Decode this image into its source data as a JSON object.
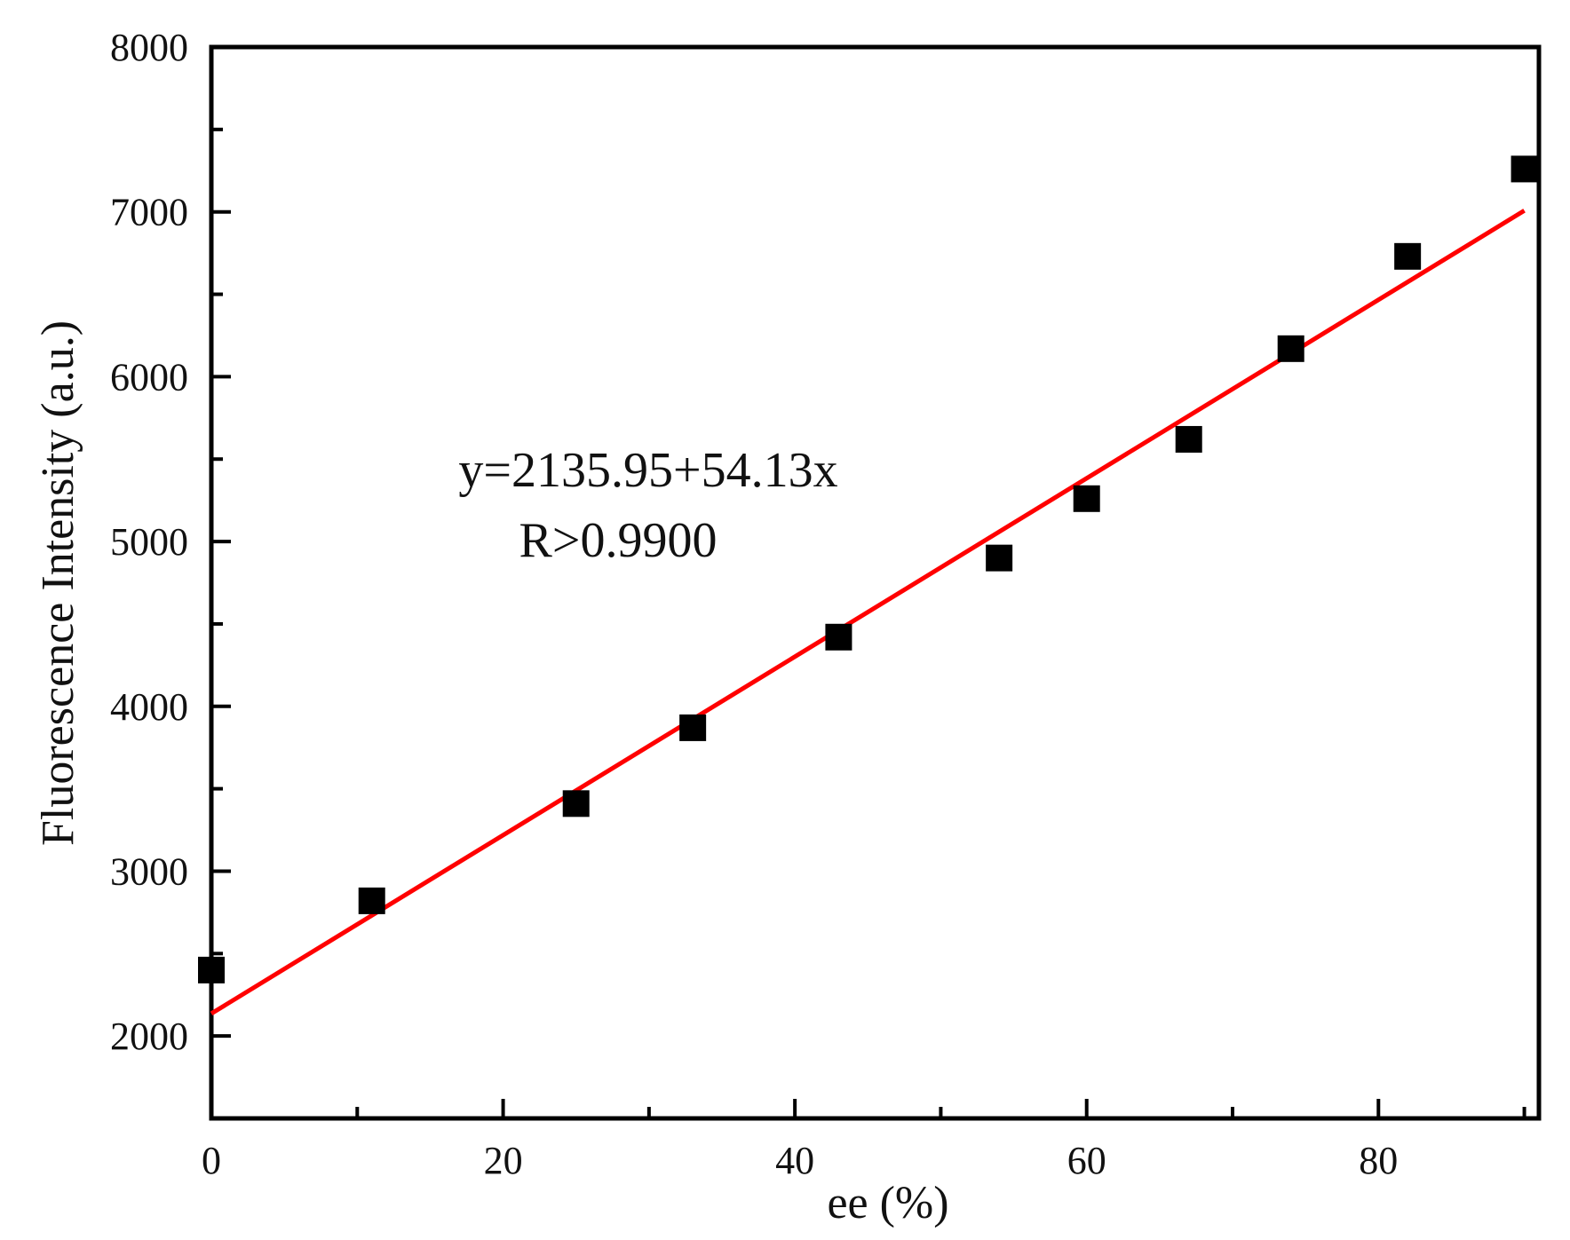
{
  "chart_data": {
    "type": "scatter",
    "xlabel": "ee (%)",
    "ylabel": "Fluorescence Intensity (a.u.)",
    "xlim": [
      0,
      91
    ],
    "ylim": [
      1500,
      8000
    ],
    "x_ticks": [
      0,
      20,
      40,
      60,
      80
    ],
    "y_ticks": [
      2000,
      3000,
      4000,
      5000,
      6000,
      7000,
      8000
    ],
    "grid": false,
    "marker_color": "#000000",
    "fit_color": "#ff0000",
    "series": [
      {
        "x": [
          0,
          11,
          25,
          33,
          43,
          54,
          60,
          67,
          74,
          82,
          90
        ],
        "y": [
          2400,
          2820,
          3410,
          3870,
          4420,
          4900,
          5260,
          5620,
          6170,
          6730,
          7260
        ]
      }
    ],
    "fit": {
      "intercept": 2135.95,
      "slope": 54.13,
      "x_range": [
        0,
        90
      ]
    },
    "annotations": [
      "y=2135.95+54.13x",
      "R>0.9900"
    ]
  }
}
